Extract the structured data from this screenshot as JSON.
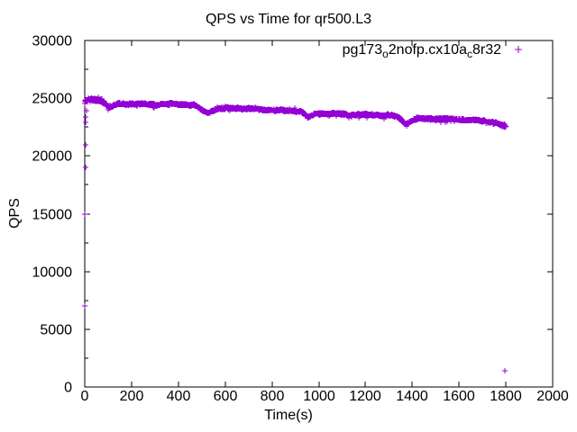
{
  "chart_data": {
    "type": "scatter",
    "title": "QPS vs Time for qr500.L3",
    "xlabel": "Time(s)",
    "ylabel": "QPS",
    "xlim": [
      0,
      2000
    ],
    "ylim": [
      0,
      30000
    ],
    "x_ticks": [
      0,
      200,
      400,
      600,
      800,
      1000,
      1200,
      1400,
      1600,
      1800,
      2000
    ],
    "y_ticks": [
      0,
      5000,
      10000,
      15000,
      20000,
      25000,
      30000
    ],
    "y_minor_step": 2500,
    "grid": false,
    "background_color": "#ffffff",
    "axis_color": "#000000",
    "legend": {
      "position": "top-right-inside",
      "label_raw": "pg173_o2nofp.cx10a_c8r32",
      "runs": [
        {
          "text": "pg173",
          "sub": false
        },
        {
          "text": "o",
          "sub": true
        },
        {
          "text": "2nofp.cx10a",
          "sub": false
        },
        {
          "text": "c",
          "sub": true
        },
        {
          "text": "8r32",
          "sub": false
        }
      ]
    },
    "series": [
      {
        "name": "pg173_o2nofp.cx10a_c8r32",
        "color": "#9400D3",
        "marker": "plus",
        "sample_interval_s": 1,
        "noise_qps": 150,
        "band_control_points": [
          [
            0,
            24650
          ],
          [
            10,
            24820
          ],
          [
            30,
            24850
          ],
          [
            55,
            24830
          ],
          [
            75,
            24780
          ],
          [
            85,
            24600
          ],
          [
            95,
            24350
          ],
          [
            105,
            24180
          ],
          [
            115,
            24200
          ],
          [
            125,
            24350
          ],
          [
            140,
            24500
          ],
          [
            180,
            24540
          ],
          [
            240,
            24520
          ],
          [
            300,
            24470
          ],
          [
            360,
            24480
          ],
          [
            420,
            24450
          ],
          [
            465,
            24420
          ],
          [
            480,
            24300
          ],
          [
            500,
            24000
          ],
          [
            520,
            23780
          ],
          [
            535,
            23850
          ],
          [
            550,
            24000
          ],
          [
            565,
            24100
          ],
          [
            620,
            24120
          ],
          [
            700,
            24080
          ],
          [
            780,
            24020
          ],
          [
            860,
            23950
          ],
          [
            920,
            23880
          ],
          [
            935,
            23700
          ],
          [
            950,
            23380
          ],
          [
            962,
            23340
          ],
          [
            975,
            23500
          ],
          [
            990,
            23650
          ],
          [
            1050,
            23680
          ],
          [
            1110,
            23640
          ],
          [
            1170,
            23580
          ],
          [
            1230,
            23540
          ],
          [
            1290,
            23500
          ],
          [
            1330,
            23440
          ],
          [
            1348,
            23250
          ],
          [
            1362,
            22950
          ],
          [
            1375,
            22820
          ],
          [
            1388,
            22950
          ],
          [
            1400,
            23120
          ],
          [
            1420,
            23230
          ],
          [
            1480,
            23220
          ],
          [
            1540,
            23180
          ],
          [
            1600,
            23150
          ],
          [
            1660,
            23100
          ],
          [
            1700,
            23050
          ],
          [
            1730,
            23000
          ],
          [
            1755,
            22900
          ],
          [
            1775,
            22750
          ],
          [
            1790,
            22600
          ],
          [
            1800,
            22480
          ]
        ],
        "outliers": [
          [
            0,
            7000
          ],
          [
            1,
            15000
          ],
          [
            2,
            19000
          ],
          [
            3,
            21000
          ],
          [
            4,
            22900
          ],
          [
            5,
            23400
          ],
          [
            6,
            23900
          ],
          [
            1796,
            1400
          ]
        ]
      }
    ]
  }
}
